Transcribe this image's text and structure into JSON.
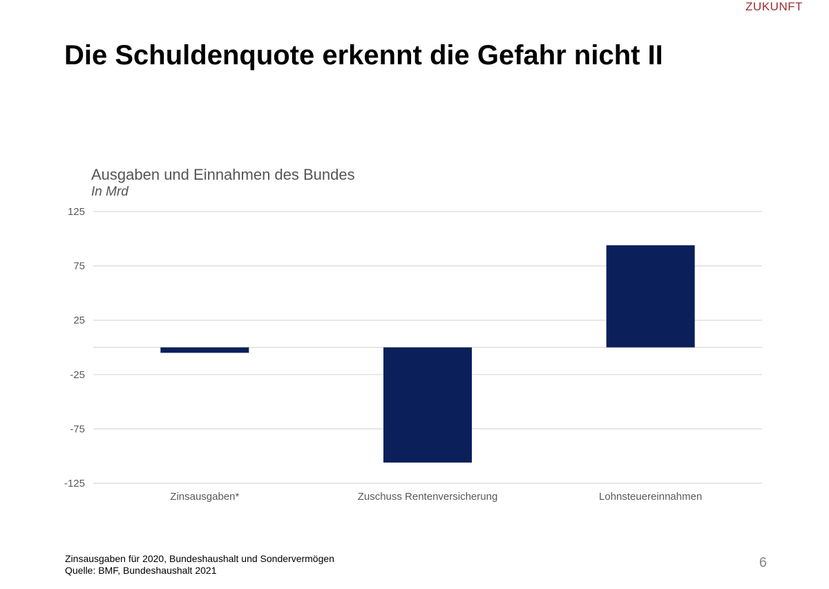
{
  "header": {
    "brand": "ZUKUNFT",
    "title": "Die Schuldenquote erkennt die Gefahr nicht II"
  },
  "footer": {
    "note_line1": "Zinsausgaben für 2020, Bundeshaushalt und Sondervermögen",
    "note_line2": "Quelle: BMF, Bundeshaushalt 2021",
    "page_number": "6"
  },
  "colors": {
    "bar": "#0b1f5b",
    "grid": "#d9d9d9",
    "brand": "#9b2c2c"
  },
  "chart_data": {
    "type": "bar",
    "title": "Ausgaben und Einnahmen des Bundes",
    "subtitle": "In Mrd",
    "categories": [
      "Zinsausgaben*",
      "Zuschuss Rentenversicherung",
      "Lohnsteuereinnahmen"
    ],
    "values": [
      -5,
      -106,
      94
    ],
    "ylim": [
      -125,
      125
    ],
    "yticks": [
      125,
      75,
      25,
      -25,
      -75,
      -125
    ],
    "grid": true,
    "xlabel": "",
    "ylabel": ""
  }
}
